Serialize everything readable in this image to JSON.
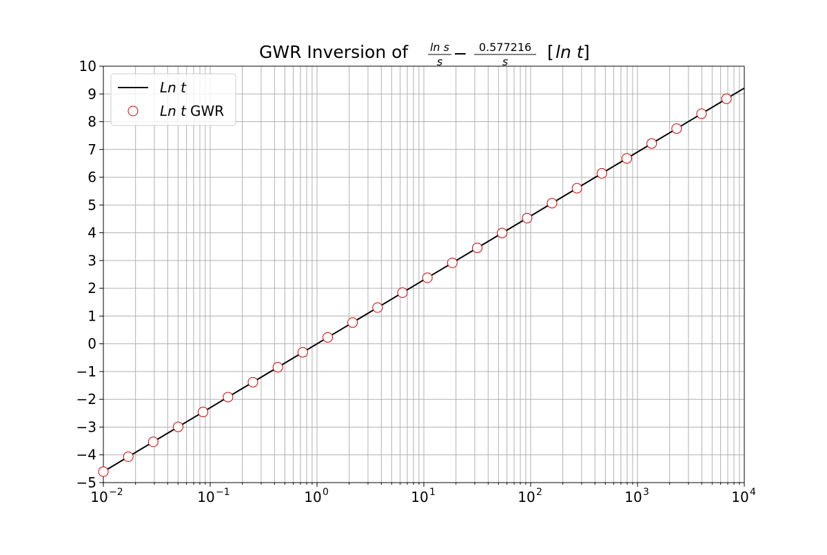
{
  "chart_data": {
    "type": "line",
    "title": {
      "main": "GWR Inversion of ",
      "frac1_num": "ln s",
      "frac1_den": "s",
      "minus": "−",
      "frac2_num": "0.577216",
      "frac2_den": "s",
      "bracket_open": "[",
      "bracket_content": "ln t",
      "bracket_close": "]"
    },
    "xlabel": "",
    "ylabel": "",
    "x_scale": "log",
    "xlim": [
      0.01,
      10000
    ],
    "ylim": [
      -5,
      10
    ],
    "x_ticks": [
      {
        "base": "10",
        "exp": "−2"
      },
      {
        "base": "10",
        "exp": "−1"
      },
      {
        "base": "10",
        "exp": "0"
      },
      {
        "base": "10",
        "exp": "1"
      },
      {
        "base": "10",
        "exp": "2"
      },
      {
        "base": "10",
        "exp": "3"
      },
      {
        "base": "10",
        "exp": "4"
      }
    ],
    "y_ticks": [
      "−5",
      "−4",
      "−3",
      "−2",
      "−1",
      "0",
      "1",
      "2",
      "3",
      "4",
      "5",
      "6",
      "7",
      "8",
      "9",
      "10"
    ],
    "grid": true,
    "grid_minor_x": true,
    "legend_position": "upper-left",
    "series": [
      {
        "name": "Ln t",
        "legend_italic": "Ln t",
        "legend_plain": "",
        "type": "line",
        "color": "#000000",
        "x": [
          0.01,
          10000
        ],
        "y": [
          -4.605,
          9.21
        ]
      },
      {
        "name": "Ln t GWR",
        "legend_italic": "Ln t",
        "legend_plain": "GWR",
        "type": "scatter",
        "marker": "circle-open",
        "color": "#cc0000",
        "x": [
          0.01,
          0.01711,
          0.02929,
          0.05012,
          0.08577,
          0.1468,
          0.2512,
          0.4299,
          0.7356,
          1.259,
          2.154,
          3.687,
          6.31,
          10.8,
          18.48,
          31.62,
          54.12,
          92.61,
          158.5,
          271.3,
          464.2,
          794.3,
          1359,
          2326,
          3981,
          6813
        ],
        "y": [
          -4.605,
          -4.068,
          -3.531,
          -2.993,
          -2.456,
          -1.919,
          -1.382,
          -0.844,
          -0.307,
          0.23,
          0.767,
          1.305,
          1.842,
          2.379,
          2.916,
          3.454,
          3.991,
          4.528,
          5.065,
          5.603,
          6.14,
          6.677,
          7.214,
          7.752,
          8.289,
          8.826
        ]
      }
    ]
  }
}
